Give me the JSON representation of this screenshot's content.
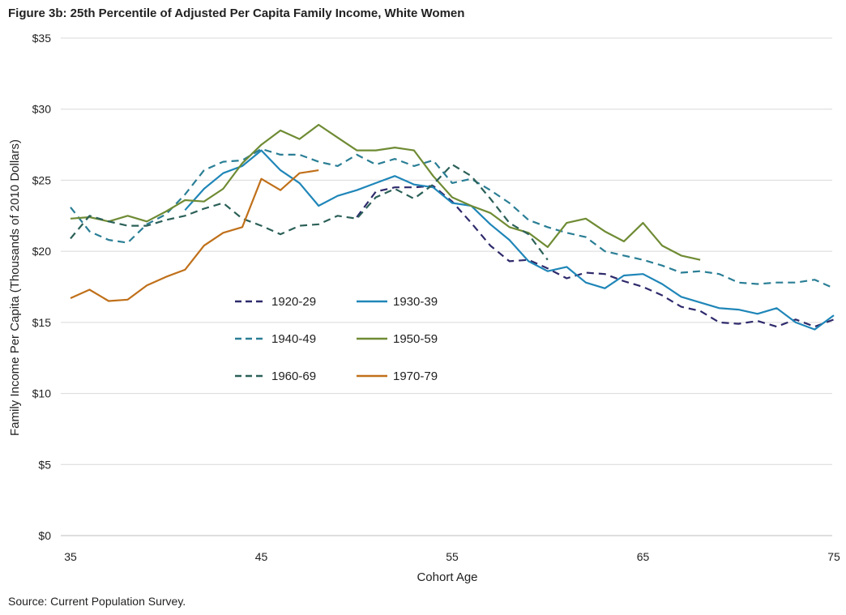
{
  "figure": {
    "title": "Figure 3b: 25th Percentile of Adjusted Per Capita Family Income, White Women",
    "source": "Source: Current Population Survey."
  },
  "chart_data": {
    "type": "line",
    "title": "Figure 3b: 25th Percentile of Adjusted Per Capita Family Income, White Women",
    "xlabel": "Cohort Age",
    "ylabel": "Family Income Per Capita (Thousands of 2010 Dollars)",
    "xlim": [
      35,
      75
    ],
    "ylim": [
      0,
      35
    ],
    "x_ticks": [
      35,
      45,
      55,
      65,
      75
    ],
    "y_ticks": [
      0,
      5,
      10,
      15,
      20,
      25,
      30,
      35
    ],
    "y_tick_labels": [
      "$0",
      "$5",
      "$10",
      "$15",
      "$20",
      "$25",
      "$30",
      "$35"
    ],
    "grid": "horizontal",
    "legend_placement": "center-left",
    "series": [
      {
        "name": "1920-29",
        "color": "#2e2a6b",
        "dash": true,
        "x": [
          50,
          51,
          52,
          53,
          54,
          55,
          56,
          57,
          58,
          59,
          60,
          61,
          62,
          63,
          64,
          65,
          66,
          67,
          68,
          69,
          70,
          71,
          72,
          73,
          74,
          75
        ],
        "y": [
          22.4,
          24.2,
          24.5,
          24.5,
          24.6,
          23.5,
          22.0,
          20.4,
          19.3,
          19.4,
          18.8,
          18.1,
          18.5,
          18.4,
          17.9,
          17.5,
          16.9,
          16.1,
          15.8,
          15.0,
          14.9,
          15.1,
          14.7,
          15.2,
          14.7,
          15.2
        ]
      },
      {
        "name": "1930-39",
        "color": "#1f86b8",
        "dash": false,
        "x": [
          41,
          42,
          43,
          44,
          45,
          46,
          47,
          48,
          49,
          50,
          51,
          52,
          53,
          54,
          55,
          56,
          57,
          58,
          59,
          60,
          61,
          62,
          63,
          64,
          65,
          66,
          67,
          68,
          69,
          70,
          71,
          72,
          73,
          74,
          75
        ],
        "y": [
          22.9,
          24.4,
          25.5,
          26.0,
          27.1,
          25.7,
          24.8,
          23.2,
          23.9,
          24.3,
          24.8,
          25.3,
          24.7,
          24.5,
          23.4,
          23.2,
          21.9,
          20.8,
          19.3,
          18.6,
          18.9,
          17.8,
          17.4,
          18.3,
          18.4,
          17.7,
          16.8,
          16.4,
          16.0,
          15.9,
          15.6,
          16.0,
          15.0,
          14.5,
          15.5
        ]
      },
      {
        "name": "1940-49",
        "color": "#2a7e95",
        "dash": true,
        "x": [
          35,
          36,
          37,
          38,
          39,
          40,
          41,
          42,
          43,
          44,
          45,
          46,
          47,
          48,
          49,
          50,
          51,
          52,
          53,
          54,
          55,
          56,
          57,
          58,
          59,
          60,
          61,
          62,
          63,
          64,
          65,
          66,
          67,
          68,
          69,
          70,
          71,
          72,
          73,
          74,
          75
        ],
        "y": [
          23.1,
          21.4,
          20.8,
          20.6,
          21.9,
          22.6,
          24.0,
          25.7,
          26.3,
          26.4,
          27.2,
          26.8,
          26.8,
          26.3,
          26.0,
          26.8,
          26.1,
          26.5,
          26.0,
          26.4,
          24.8,
          25.1,
          24.3,
          23.4,
          22.2,
          21.7,
          21.3,
          21.0,
          20.0,
          19.7,
          19.4,
          19.0,
          18.5,
          18.6,
          18.4,
          17.8,
          17.7,
          17.8,
          17.8,
          18.0,
          17.4
        ]
      },
      {
        "name": "1950-59",
        "color": "#6f8b34",
        "dash": false,
        "x": [
          35,
          36,
          37,
          38,
          39,
          40,
          41,
          42,
          43,
          44,
          45,
          46,
          47,
          48,
          49,
          50,
          51,
          52,
          53,
          54,
          55,
          56,
          57,
          58,
          59,
          60,
          61,
          62,
          63,
          64,
          65,
          66,
          67,
          68
        ],
        "y": [
          22.3,
          22.4,
          22.1,
          22.5,
          22.1,
          22.8,
          23.6,
          23.5,
          24.4,
          26.2,
          27.5,
          28.5,
          27.9,
          28.9,
          28.0,
          27.1,
          27.1,
          27.3,
          27.1,
          25.3,
          23.8,
          23.2,
          22.7,
          21.7,
          21.3,
          20.3,
          22.0,
          22.3,
          21.4,
          20.7,
          22.0,
          20.4,
          19.7,
          19.4
        ]
      },
      {
        "name": "1960-69",
        "color": "#2b6058",
        "dash": true,
        "x": [
          35,
          36,
          37,
          38,
          39,
          40,
          41,
          42,
          43,
          44,
          45,
          46,
          47,
          48,
          49,
          50,
          51,
          52,
          53,
          54,
          55,
          56,
          57,
          58,
          59,
          60
        ],
        "y": [
          20.9,
          22.5,
          22.1,
          21.8,
          21.8,
          22.2,
          22.5,
          23.0,
          23.4,
          22.3,
          21.8,
          21.2,
          21.8,
          21.9,
          22.5,
          22.3,
          23.8,
          24.4,
          23.7,
          24.7,
          26.1,
          25.3,
          23.7,
          22.0,
          21.2,
          19.4
        ]
      },
      {
        "name": "1970-79",
        "color": "#c0701a",
        "dash": false,
        "x": [
          35,
          36,
          37,
          38,
          39,
          40,
          41,
          42,
          43,
          44,
          45,
          46,
          47,
          48
        ],
        "y": [
          16.7,
          17.3,
          16.5,
          16.6,
          17.6,
          18.2,
          18.7,
          20.4,
          21.3,
          21.7,
          25.1,
          24.3,
          25.5,
          25.7
        ]
      }
    ]
  }
}
